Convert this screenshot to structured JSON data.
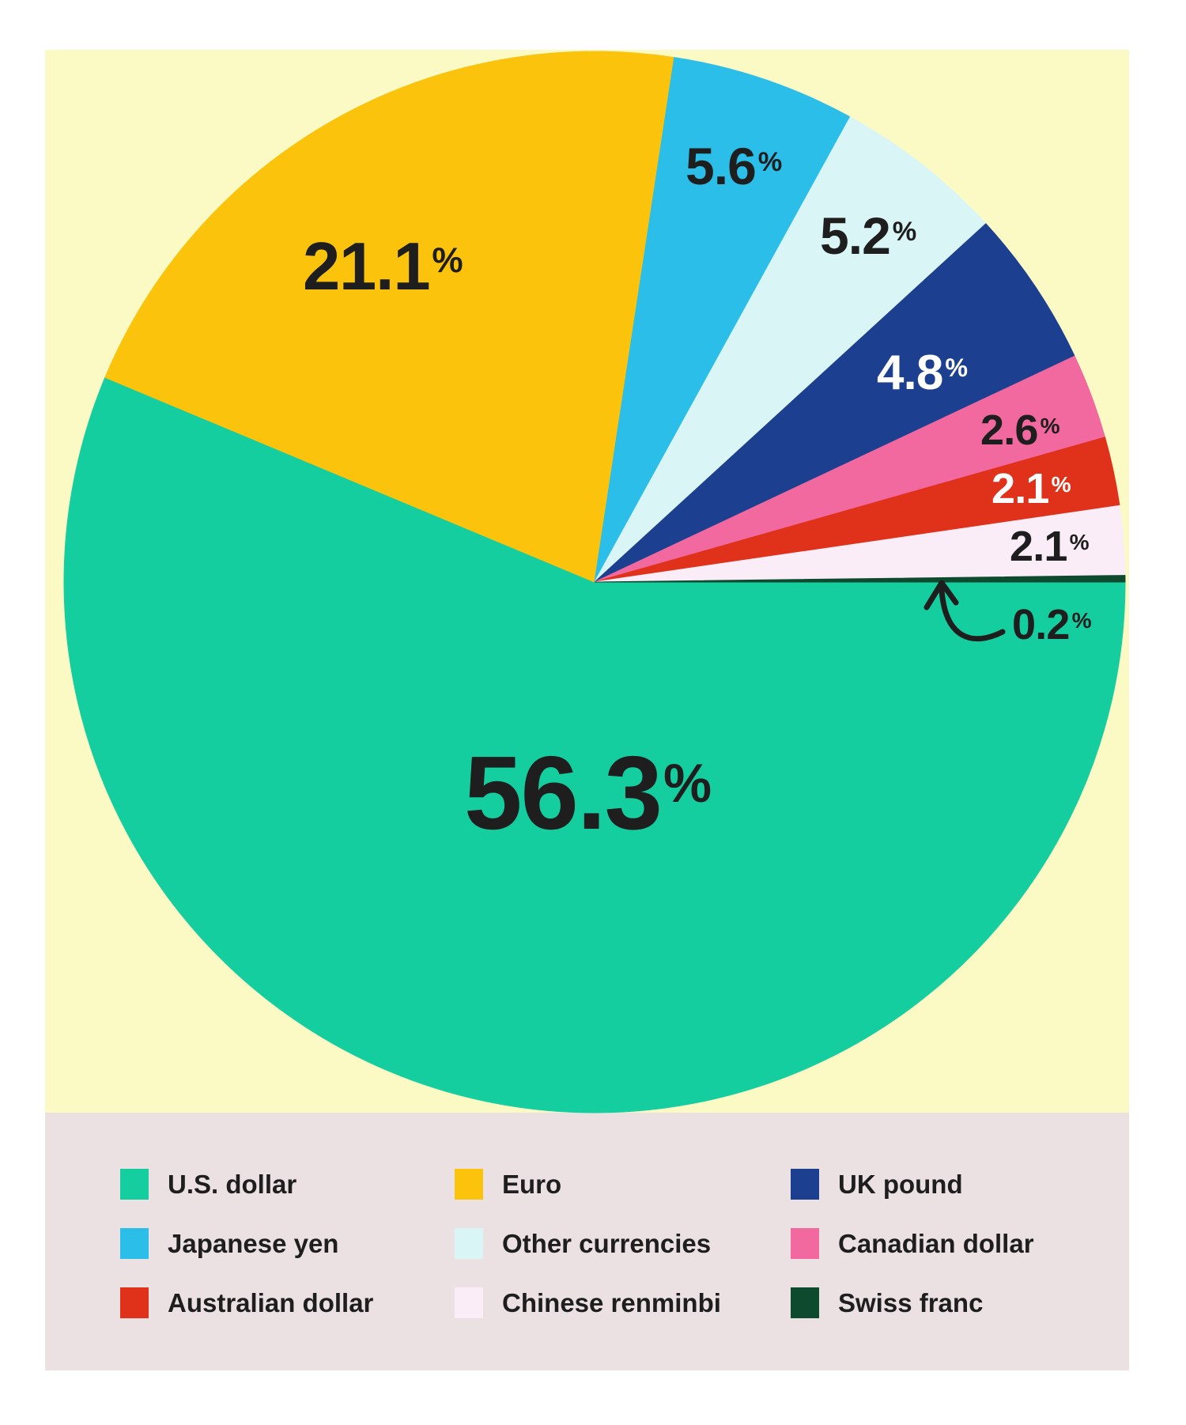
{
  "unit": "%",
  "colors": {
    "page_background": "#FFFFFF",
    "chart_background": "#FBFAC5",
    "legend_background": "#EBE1E3",
    "label_dark": "#1E1E1E",
    "label_light": "#FFFFFF",
    "arrow": "#1E1E1E"
  },
  "chart_data": {
    "type": "pie",
    "title": "",
    "total": 100,
    "start_angle_deg": 0,
    "direction": "clockwise",
    "legend_position": "bottom-grid-3x3",
    "slices": [
      {
        "label": "U.S. dollar",
        "value": 56.3,
        "display": "56.3",
        "color": "#15CEA0",
        "label_color": "#1E1E1E"
      },
      {
        "label": "Euro",
        "value": 21.1,
        "display": "21.1",
        "color": "#FCC30D",
        "label_color": "#1E1E1E"
      },
      {
        "label": "Japanese yen",
        "value": 5.6,
        "display": "5.6",
        "color": "#2ABEE8",
        "label_color": "#1E1E1E"
      },
      {
        "label": "Other currencies",
        "value": 5.2,
        "display": "5.2",
        "color": "#D9F5F5",
        "label_color": "#1E1E1E"
      },
      {
        "label": "UK pound",
        "value": 4.8,
        "display": "4.8",
        "color": "#1C3F8F",
        "label_color": "#FFFFFF"
      },
      {
        "label": "Canadian dollar",
        "value": 2.6,
        "display": "2.6",
        "color": "#F1699E",
        "label_color": "#1E1E1E"
      },
      {
        "label": "Australian dollar",
        "value": 2.1,
        "display": "2.1",
        "color": "#E0311B",
        "label_color": "#FFFFFF"
      },
      {
        "label": "Chinese renminbi",
        "value": 2.1,
        "display": "2.1",
        "color": "#FBEDF8",
        "label_color": "#1E1E1E"
      },
      {
        "label": "Swiss franc",
        "value": 0.2,
        "display": "0.2",
        "color": "#0D4A2E",
        "label_color": "#1E1E1E"
      }
    ]
  },
  "legend": {
    "rows": [
      [
        "U.S. dollar",
        "Euro",
        "UK pound"
      ],
      [
        "Japanese yen",
        "Other currencies",
        "Canadian dollar"
      ],
      [
        "Australian dollar",
        "Chinese renminbi",
        "Swiss franc"
      ]
    ]
  }
}
